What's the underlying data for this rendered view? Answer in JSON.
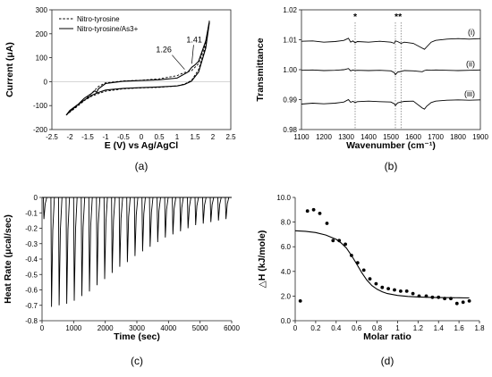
{
  "chart_data": [
    {
      "id": "a",
      "type": "line",
      "panel_label": "(a)",
      "xlabel": "E (V) vs Ag/AgCl",
      "ylabel": "Current (μA)",
      "xlim": [
        -2.5,
        2.5
      ],
      "ylim": [
        -200,
        300
      ],
      "xticks": [
        "-2.5",
        "-2",
        "-1.5",
        "-1",
        "-0.5",
        "0",
        "0.5",
        "1",
        "1.5",
        "2",
        "2.5"
      ],
      "yticks": [
        "-200",
        "-100",
        "0",
        "100",
        "200",
        "300"
      ],
      "grid": false,
      "legend_position": "top-left",
      "annotations": [
        "1.26",
        "1.41"
      ],
      "series": [
        {
          "name": "Nitro-tyrosine",
          "style": "dashed",
          "x": [
            -2.1,
            -2.0,
            -1.8,
            -1.6,
            -1.4,
            -1.2,
            -1.0,
            -0.5,
            0.0,
            0.5,
            1.0,
            1.2,
            1.26,
            1.4,
            1.6,
            1.8,
            1.9,
            1.9,
            1.8,
            1.6,
            1.4,
            1.2,
            1.0,
            0.5,
            0.0,
            -0.5,
            -1.0,
            -1.2,
            -1.4,
            -1.6,
            -1.8,
            -2.0,
            -2.1
          ],
          "y": [
            -140,
            -128,
            -105,
            -80,
            -50,
            -20,
            -5,
            3,
            6,
            12,
            25,
            38,
            40,
            45,
            75,
            160,
            255,
            250,
            150,
            50,
            5,
            -10,
            -18,
            -24,
            -26,
            -30,
            -40,
            -50,
            -62,
            -80,
            -100,
            -125,
            -140
          ]
        },
        {
          "name": "Nitro-tyrosine/As3+",
          "style": "solid",
          "x": [
            -2.1,
            -2.0,
            -1.8,
            -1.6,
            -1.4,
            -1.3,
            -1.25,
            -1.2,
            -1.0,
            -0.5,
            0.0,
            0.5,
            1.0,
            1.3,
            1.41,
            1.5,
            1.6,
            1.8,
            1.9,
            1.9,
            1.8,
            1.6,
            1.4,
            1.2,
            1.0,
            0.5,
            0.0,
            -0.5,
            -1.0,
            -1.2,
            -1.4,
            -1.6,
            -1.8,
            -2.0,
            -2.1
          ],
          "y": [
            -140,
            -125,
            -100,
            -70,
            -50,
            -38,
            -45,
            -30,
            -8,
            2,
            5,
            8,
            15,
            40,
            60,
            70,
            85,
            170,
            250,
            245,
            140,
            40,
            2,
            -12,
            -18,
            -22,
            -25,
            -28,
            -35,
            -45,
            -58,
            -78,
            -98,
            -120,
            -140
          ]
        }
      ]
    },
    {
      "id": "b",
      "type": "line",
      "panel_label": "(b)",
      "xlabel": "Wavenumber (cm⁻¹)",
      "ylabel": "Transmittance",
      "xlim": [
        1100,
        1900
      ],
      "ylim": [
        0.98,
        1.02
      ],
      "xticks": [
        "1100",
        "1200",
        "1300",
        "1400",
        "1500",
        "1600",
        "1700",
        "1800",
        "1900"
      ],
      "yticks": [
        "0.98",
        "0.99",
        "1.00",
        "1.01",
        "1.02"
      ],
      "grid": false,
      "markers": [
        "*",
        "**"
      ],
      "marker_positions": [
        1340,
        1520,
        1545
      ],
      "series": [
        {
          "name": "(i)",
          "x": [
            1100,
            1150,
            1200,
            1250,
            1290,
            1310,
            1320,
            1330,
            1340,
            1350,
            1400,
            1450,
            1500,
            1515,
            1520,
            1530,
            1545,
            1560,
            1600,
            1640,
            1650,
            1660,
            1680,
            1700,
            1750,
            1800,
            1850,
            1900
          ],
          "y": [
            1.0095,
            1.0096,
            1.0092,
            1.0094,
            1.0098,
            1.0105,
            1.0092,
            1.0096,
            1.009,
            1.0094,
            1.0092,
            1.0095,
            1.0092,
            1.0088,
            1.0096,
            1.0094,
            1.0088,
            1.0092,
            1.0088,
            1.0072,
            1.0068,
            1.0076,
            1.0092,
            1.0098,
            1.0102,
            1.0104,
            1.0102,
            1.0104
          ]
        },
        {
          "name": "(ii)",
          "x": [
            1100,
            1150,
            1200,
            1250,
            1290,
            1310,
            1320,
            1330,
            1340,
            1350,
            1400,
            1450,
            1500,
            1515,
            1520,
            1530,
            1545,
            1560,
            1600,
            1640,
            1650,
            1660,
            1680,
            1700,
            1750,
            1800,
            1850,
            1900
          ],
          "y": [
            0.9998,
            0.9999,
            0.9997,
            0.9998,
            1.0,
            1.0004,
            0.9996,
            0.9999,
            0.9997,
            0.9998,
            0.9997,
            0.9998,
            0.9996,
            0.999,
            0.9983,
            0.9992,
            0.9994,
            0.9997,
            0.9996,
            0.9993,
            0.9997,
            0.9999,
            0.9998,
            0.9999,
            0.9998,
            0.9997,
            0.9998,
            0.9999
          ]
        },
        {
          "name": "(iii)",
          "x": [
            1100,
            1150,
            1200,
            1250,
            1290,
            1310,
            1320,
            1330,
            1340,
            1350,
            1400,
            1450,
            1500,
            1515,
            1520,
            1530,
            1545,
            1560,
            1600,
            1640,
            1650,
            1660,
            1680,
            1700,
            1750,
            1800,
            1850,
            1900
          ],
          "y": [
            0.9885,
            0.9888,
            0.9886,
            0.9888,
            0.9892,
            0.99,
            0.9891,
            0.9894,
            0.989,
            0.9893,
            0.9895,
            0.9893,
            0.9892,
            0.9886,
            0.988,
            0.9889,
            0.9892,
            0.9894,
            0.9895,
            0.9872,
            0.9868,
            0.9878,
            0.989,
            0.9895,
            0.9898,
            0.9899,
            0.9898,
            0.9899
          ]
        }
      ]
    },
    {
      "id": "c",
      "type": "line",
      "panel_label": "(c)",
      "xlabel": "Time (sec)",
      "ylabel": "Heat Rate (μcal/sec)",
      "xlim": [
        0,
        6000
      ],
      "ylim": [
        -0.8,
        0
      ],
      "xticks": [
        "0",
        "1000",
        "2000",
        "3000",
        "4000",
        "5000",
        "6000"
      ],
      "yticks": [
        "0",
        "-0.1",
        "-0.2",
        "-0.3",
        "-0.4",
        "-0.5",
        "-0.6",
        "-0.7",
        "-0.8"
      ],
      "grid": false,
      "injection_times_sec": [
        60,
        300,
        540,
        780,
        1020,
        1260,
        1500,
        1740,
        1980,
        2220,
        2460,
        2700,
        2940,
        3180,
        3420,
        3660,
        3900,
        4140,
        4380,
        4620,
        4860,
        5100,
        5340,
        5580,
        5820
      ],
      "peak_heat_rate": [
        -0.14,
        -0.71,
        -0.7,
        -0.69,
        -0.67,
        -0.64,
        -0.61,
        -0.57,
        -0.53,
        -0.49,
        -0.45,
        -0.42,
        -0.38,
        -0.35,
        -0.32,
        -0.29,
        -0.26,
        -0.24,
        -0.22,
        -0.2,
        -0.18,
        -0.17,
        -0.16,
        -0.15,
        -0.14
      ]
    },
    {
      "id": "d",
      "type": "scatter",
      "panel_label": "(d)",
      "xlabel": "Molar ratio",
      "ylabel": "△H (kJ/mole)",
      "xlim": [
        0,
        1.8
      ],
      "ylim": [
        0,
        10
      ],
      "xticks": [
        "0",
        "0.2",
        "0.4",
        "0.6",
        "0.8",
        "1",
        "1.2",
        "1.4",
        "1.6",
        "1.8"
      ],
      "yticks": [
        "0.0",
        "2.0",
        "4.0",
        "6.0",
        "8.0",
        "10.0"
      ],
      "grid": false,
      "points": {
        "x": [
          0.05,
          0.12,
          0.18,
          0.24,
          0.31,
          0.37,
          0.43,
          0.49,
          0.55,
          0.61,
          0.67,
          0.73,
          0.79,
          0.85,
          0.91,
          0.97,
          1.03,
          1.09,
          1.15,
          1.21,
          1.28,
          1.34,
          1.4,
          1.46,
          1.52,
          1.58,
          1.64,
          1.7
        ],
        "y": [
          1.6,
          8.9,
          9.0,
          8.7,
          7.9,
          6.5,
          6.5,
          6.2,
          5.3,
          4.7,
          4.1,
          3.4,
          3.0,
          2.7,
          2.6,
          2.5,
          2.4,
          2.4,
          2.2,
          2.0,
          2.0,
          1.9,
          1.9,
          1.8,
          1.8,
          1.4,
          1.5,
          1.6
        ]
      },
      "fit": {
        "x": [
          0.0,
          0.1,
          0.2,
          0.3,
          0.4,
          0.45,
          0.5,
          0.55,
          0.6,
          0.65,
          0.7,
          0.75,
          0.8,
          0.85,
          0.9,
          1.0,
          1.1,
          1.2,
          1.3,
          1.4,
          1.5,
          1.6,
          1.7
        ],
        "y": [
          7.3,
          7.25,
          7.15,
          6.95,
          6.6,
          6.3,
          5.9,
          5.3,
          4.6,
          3.9,
          3.3,
          2.85,
          2.55,
          2.35,
          2.2,
          2.05,
          1.97,
          1.93,
          1.9,
          1.88,
          1.87,
          1.86,
          1.85
        ]
      }
    }
  ]
}
